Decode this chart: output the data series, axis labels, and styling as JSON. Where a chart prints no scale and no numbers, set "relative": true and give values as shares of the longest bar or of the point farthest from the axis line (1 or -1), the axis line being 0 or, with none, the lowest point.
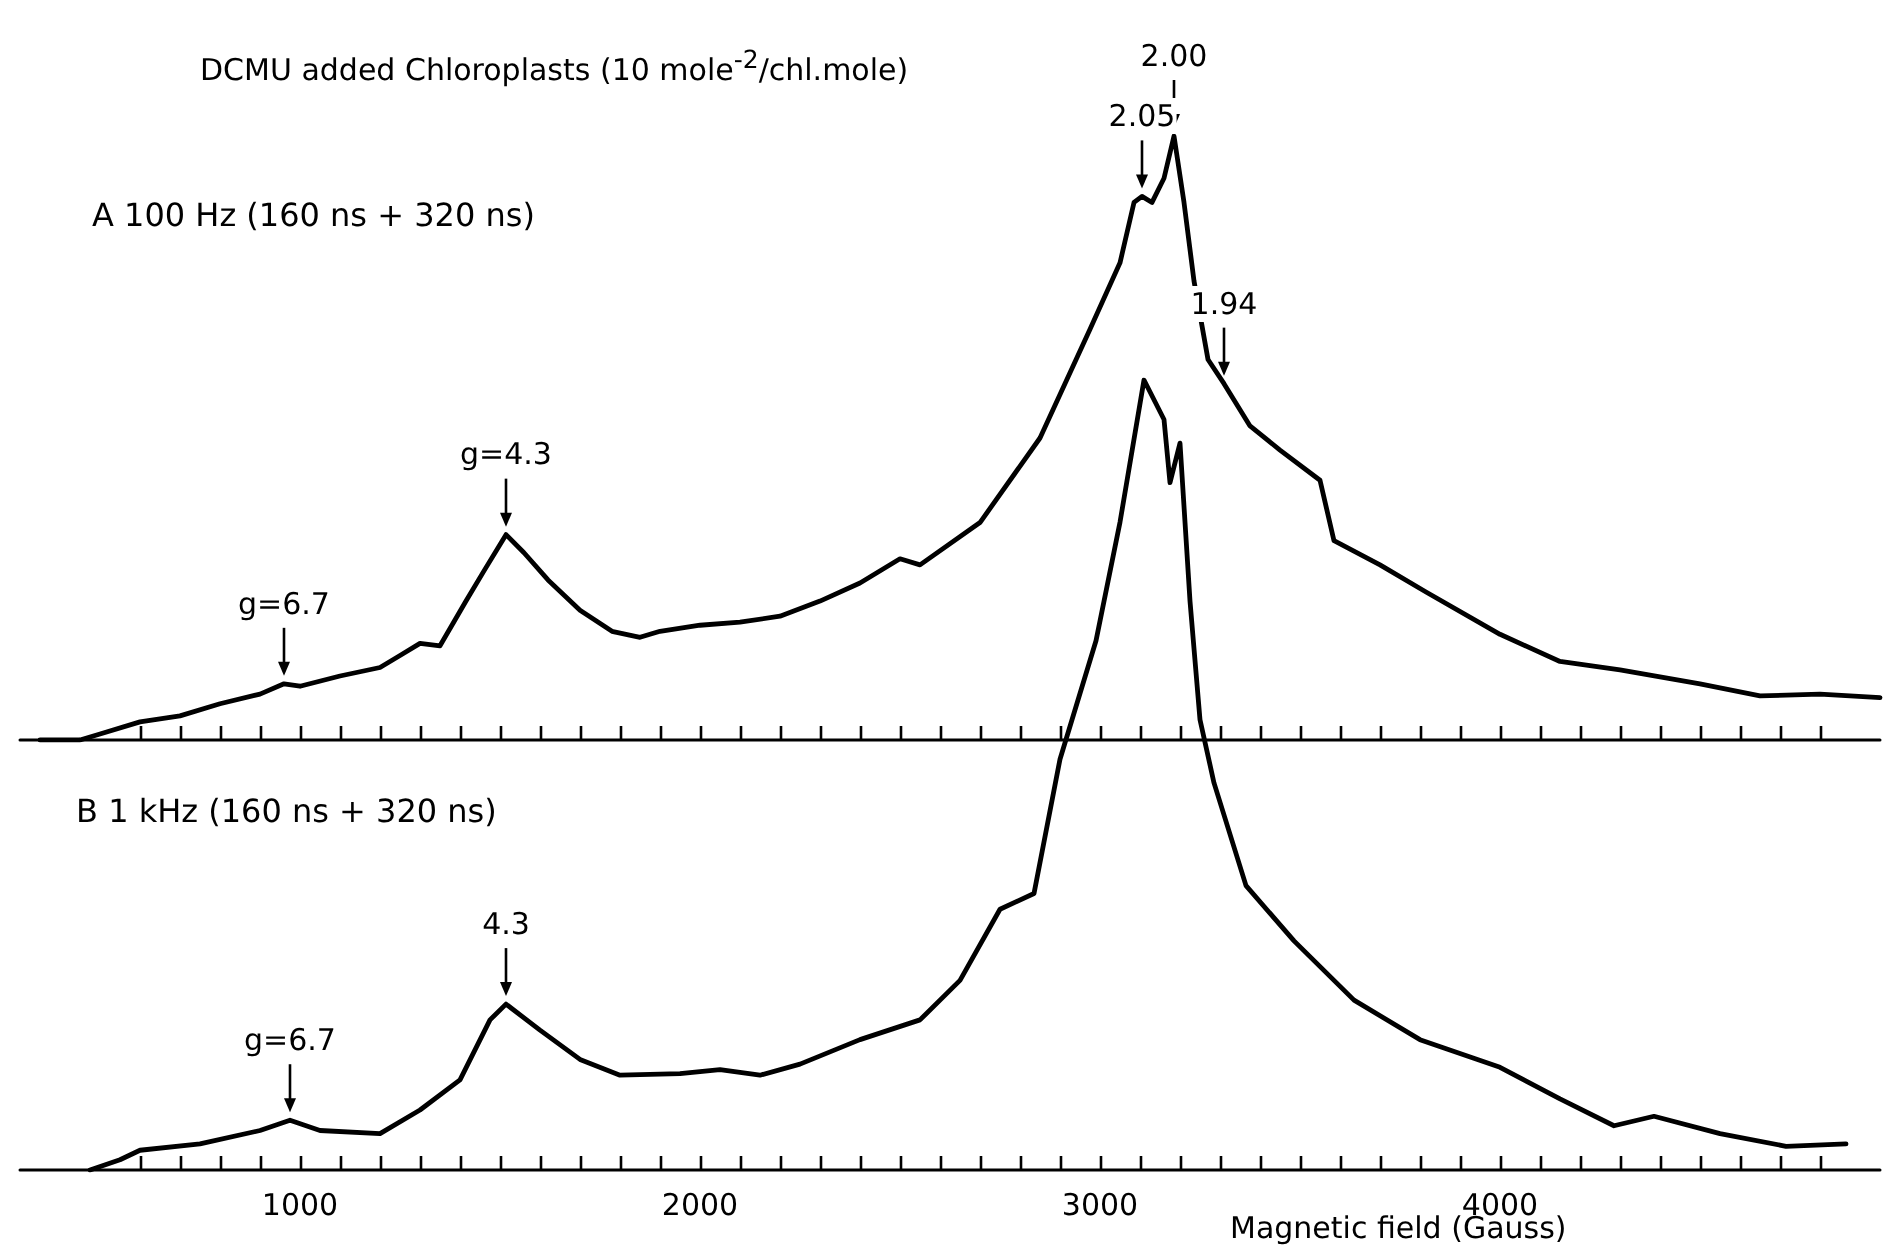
{
  "chart_data": [
    {
      "type": "line",
      "title": "DCMU added Chloroplasts (10 mole$^{-2}$/chl.mole)",
      "subtitle": "A 100 Hz (160 ns + 320 ns)",
      "relative": true,
      "tick_labels": false,
      "marker": "none",
      "line_style": "solid",
      "xlim": [
        300,
        4950
      ],
      "xticks": [
        {
          "value": 600,
          "label": null
        },
        {
          "value": 700,
          "label": null
        },
        {
          "value": 800,
          "label": null
        },
        {
          "value": 900,
          "label": null
        },
        1000,
        {
          "value": 1100,
          "label": null
        },
        {
          "value": 1200,
          "label": null
        },
        {
          "value": 1300,
          "label": null
        },
        {
          "value": 1400,
          "label": null
        },
        {
          "value": 1500,
          "label": null
        },
        {
          "value": 1600,
          "label": null
        },
        {
          "value": 1700,
          "label": null
        },
        {
          "value": 1800,
          "label": null
        },
        {
          "value": 1900,
          "label": null
        },
        2000,
        {
          "value": 2100,
          "label": null
        },
        {
          "value": 2200,
          "label": null
        },
        {
          "value": 2300,
          "label": null
        },
        {
          "value": 2400,
          "label": null
        },
        {
          "value": 2500,
          "label": null
        },
        {
          "value": 2600,
          "label": null
        },
        {
          "value": 2700,
          "label": null
        },
        {
          "value": 2800,
          "label": null
        },
        {
          "value": 2900,
          "label": null
        },
        3000,
        {
          "value": 3100,
          "label": null
        },
        {
          "value": 3200,
          "label": null
        },
        {
          "value": 3300,
          "label": null
        },
        {
          "value": 3400,
          "label": null
        },
        {
          "value": 3500,
          "label": null
        },
        {
          "value": 3600,
          "label": null
        },
        {
          "value": 3700,
          "label": null
        },
        {
          "value": 3800,
          "label": null
        },
        {
          "value": 3900,
          "label": null
        },
        4000,
        {
          "value": 4100,
          "label": null
        },
        {
          "value": 4200,
          "label": null
        },
        {
          "value": 4300,
          "label": null
        },
        {
          "value": 4400,
          "label": null
        },
        {
          "value": 4500,
          "label": null
        },
        {
          "value": 4600,
          "label": null
        },
        {
          "value": 4700,
          "label": null
        },
        {
          "value": 4800,
          "label": null
        }
      ],
      "series": [
        {
          "color": "#000000",
          "x": [
            350,
            450,
            500,
            600,
            700,
            800,
            900,
            960,
            1000,
            1100,
            1200,
            1250,
            1300,
            1350,
            1415,
            1460,
            1515,
            1560,
            1620,
            1700,
            1780,
            1850,
            1900,
            2000,
            2100,
            2200,
            2300,
            2400,
            2500,
            2550,
            2700,
            2850,
            2975,
            3050,
            3085,
            3105,
            3130,
            3160,
            3185,
            3210,
            3235,
            3270,
            3310,
            3375,
            3450,
            3550,
            3585,
            3700,
            3815,
            4000,
            4150,
            4300,
            4500,
            4650,
            4800,
            4950
          ],
          "values": [
            0,
            0,
            0.01,
            0.03,
            0.04,
            0.06,
            0.076,
            0.093,
            0.089,
            0.106,
            0.12,
            0.14,
            0.16,
            0.156,
            0.23,
            0.28,
            0.34,
            0.31,
            0.265,
            0.215,
            0.18,
            0.17,
            0.18,
            0.19,
            0.195,
            0.205,
            0.23,
            0.26,
            0.3,
            0.29,
            0.36,
            0.5,
            0.68,
            0.79,
            0.89,
            0.9,
            0.89,
            0.93,
            1,
            0.89,
            0.76,
            0.63,
            0.59,
            0.52,
            0.48,
            0.43,
            0.33,
            0.29,
            0.245,
            0.175,
            0.13,
            0.116,
            0.093,
            0.073,
            0.076,
            0.07
          ]
        }
      ],
      "annotations": [
        {
          "text": "g=6.7",
          "x": 960,
          "y": 0.093
        },
        {
          "text": "g=4.3",
          "x": 1515,
          "y": 0.34
        },
        {
          "text": "2.05",
          "x": 3105,
          "y": 0.9
        },
        {
          "text": "2.00",
          "x": 3185,
          "y": 1
        },
        {
          "text": "1.94",
          "x": 3310,
          "y": 0.59
        }
      ]
    },
    {
      "type": "line",
      "title": "B 1 kHz (160 ns + 320 ns)",
      "xlabel": "Magnetic field (Gauss)",
      "relative": true,
      "marker": "none",
      "line_style": "solid",
      "xlim": [
        300,
        4950
      ],
      "xticks": [
        {
          "value": 600,
          "label": null
        },
        {
          "value": 700,
          "label": null
        },
        {
          "value": 800,
          "label": null
        },
        {
          "value": 900,
          "label": null
        },
        1000,
        {
          "value": 1100,
          "label": null
        },
        {
          "value": 1200,
          "label": null
        },
        {
          "value": 1300,
          "label": null
        },
        {
          "value": 1400,
          "label": null
        },
        {
          "value": 1500,
          "label": null
        },
        {
          "value": 1600,
          "label": null
        },
        {
          "value": 1700,
          "label": null
        },
        {
          "value": 1800,
          "label": null
        },
        {
          "value": 1900,
          "label": null
        },
        2000,
        {
          "value": 2100,
          "label": null
        },
        {
          "value": 2200,
          "label": null
        },
        {
          "value": 2300,
          "label": null
        },
        {
          "value": 2400,
          "label": null
        },
        {
          "value": 2500,
          "label": null
        },
        {
          "value": 2600,
          "label": null
        },
        {
          "value": 2700,
          "label": null
        },
        {
          "value": 2800,
          "label": null
        },
        {
          "value": 2900,
          "label": null
        },
        3000,
        {
          "value": 3100,
          "label": null
        },
        {
          "value": 3200,
          "label": null
        },
        {
          "value": 3300,
          "label": null
        },
        {
          "value": 3400,
          "label": null
        },
        {
          "value": 3500,
          "label": null
        },
        {
          "value": 3600,
          "label": null
        },
        {
          "value": 3700,
          "label": null
        },
        {
          "value": 3800,
          "label": null
        },
        {
          "value": 3900,
          "label": null
        },
        4000,
        {
          "value": 4100,
          "label": null
        },
        {
          "value": 4200,
          "label": null
        },
        {
          "value": 4300,
          "label": null
        },
        {
          "value": 4400,
          "label": null
        },
        {
          "value": 4500,
          "label": null
        },
        {
          "value": 4600,
          "label": null
        },
        {
          "value": 4700,
          "label": null
        },
        {
          "value": 4800,
          "label": null
        }
      ],
      "series": [
        {
          "color": "#000000",
          "x": [
            475,
            550,
            600,
            750,
            900,
            975,
            1050,
            1200,
            1300,
            1400,
            1475,
            1515,
            1600,
            1700,
            1800,
            1950,
            2050,
            2150,
            2250,
            2400,
            2550,
            2650,
            2750,
            2835,
            2900,
            2990,
            3050,
            3110,
            3160,
            3175,
            3200,
            3225,
            3250,
            3285,
            3365,
            3485,
            3635,
            3800,
            4000,
            4150,
            4285,
            4385,
            4550,
            4715,
            4865
          ],
          "values": [
            0,
            0.013,
            0.025,
            0.033,
            0.05,
            0.063,
            0.05,
            0.046,
            0.076,
            0.114,
            0.19,
            0.21,
            0.177,
            0.14,
            0.12,
            0.122,
            0.127,
            0.12,
            0.134,
            0.165,
            0.19,
            0.24,
            0.33,
            0.35,
            0.52,
            0.67,
            0.82,
            1,
            0.95,
            0.87,
            0.92,
            0.72,
            0.57,
            0.49,
            0.36,
            0.29,
            0.215,
            0.165,
            0.13,
            0.09,
            0.056,
            0.068,
            0.046,
            0.03,
            0.033
          ]
        }
      ],
      "annotations": [
        {
          "text": "g=6.7",
          "x": 975,
          "y": 0.063
        },
        {
          "text": "4.3",
          "x": 1515,
          "y": 0.21
        }
      ]
    }
  ]
}
